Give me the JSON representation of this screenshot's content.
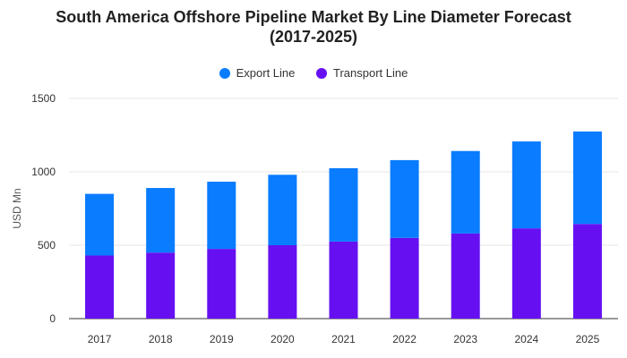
{
  "chart_data": {
    "type": "bar",
    "stacked": true,
    "title_line1": "South America Offshore Pipeline Market By Line Diameter Forecast",
    "title_line2": "(2017-2025)",
    "ylabel": "USD Mn",
    "xlabel": "",
    "categories": [
      "2017",
      "2018",
      "2019",
      "2020",
      "2021",
      "2022",
      "2023",
      "2024",
      "2025"
    ],
    "series": [
      {
        "name": "Transport Line",
        "color": "#6610f2",
        "values": [
          430,
          450,
          475,
          500,
          525,
          550,
          580,
          615,
          645
        ]
      },
      {
        "name": "Export Line",
        "color": "#0a7cff",
        "values": [
          420,
          440,
          458,
          480,
          500,
          530,
          562,
          592,
          630
        ]
      }
    ],
    "legend_order": [
      "Export Line",
      "Transport Line"
    ],
    "ylim": [
      0,
      1500
    ],
    "yticks": [
      "0",
      "500",
      "1000",
      "1500"
    ],
    "grid": true,
    "legend_position": "top"
  }
}
